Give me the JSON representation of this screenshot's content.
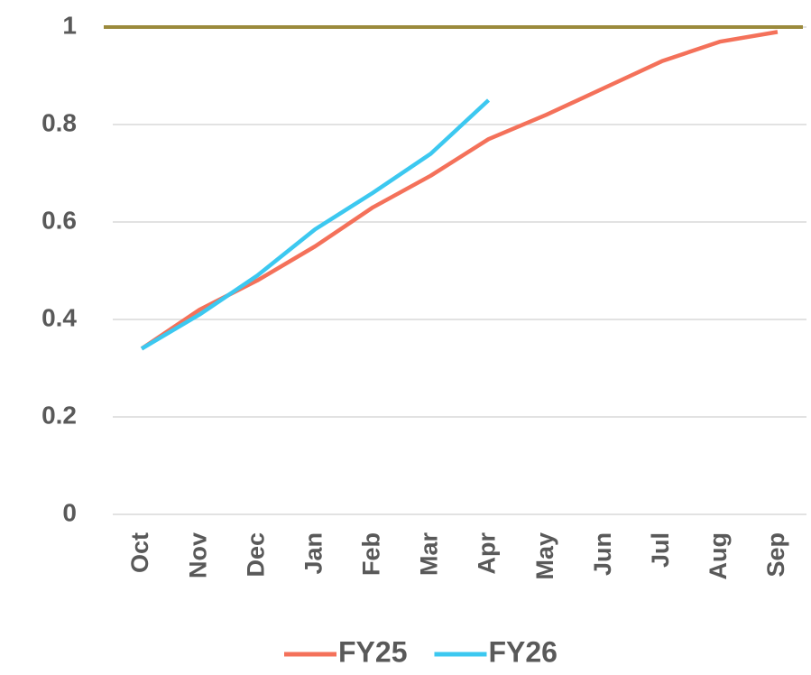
{
  "chart_data": {
    "type": "line",
    "categories": [
      "Oct",
      "Nov",
      "Dec",
      "Jan",
      "Feb",
      "Mar",
      "Apr",
      "May",
      "Jun",
      "Jul",
      "Aug",
      "Sep"
    ],
    "series": [
      {
        "name": "FY25",
        "color": "#f4715a",
        "values": [
          0.34,
          0.42,
          0.48,
          0.55,
          0.63,
          0.695,
          0.77,
          0.82,
          0.875,
          0.93,
          0.97,
          0.99
        ]
      },
      {
        "name": "FY26",
        "color": "#3cc8f0",
        "values": [
          0.34,
          0.41,
          0.49,
          0.585,
          0.66,
          0.74,
          0.85,
          null,
          null,
          null,
          null,
          null
        ]
      }
    ],
    "reference_line": {
      "value": 1,
      "color": "#9b8a3c"
    },
    "ylim": [
      0,
      1
    ],
    "yticks": [
      0,
      0.2,
      0.4,
      0.6,
      0.8,
      1
    ],
    "grid": true,
    "legend": "bottom"
  }
}
